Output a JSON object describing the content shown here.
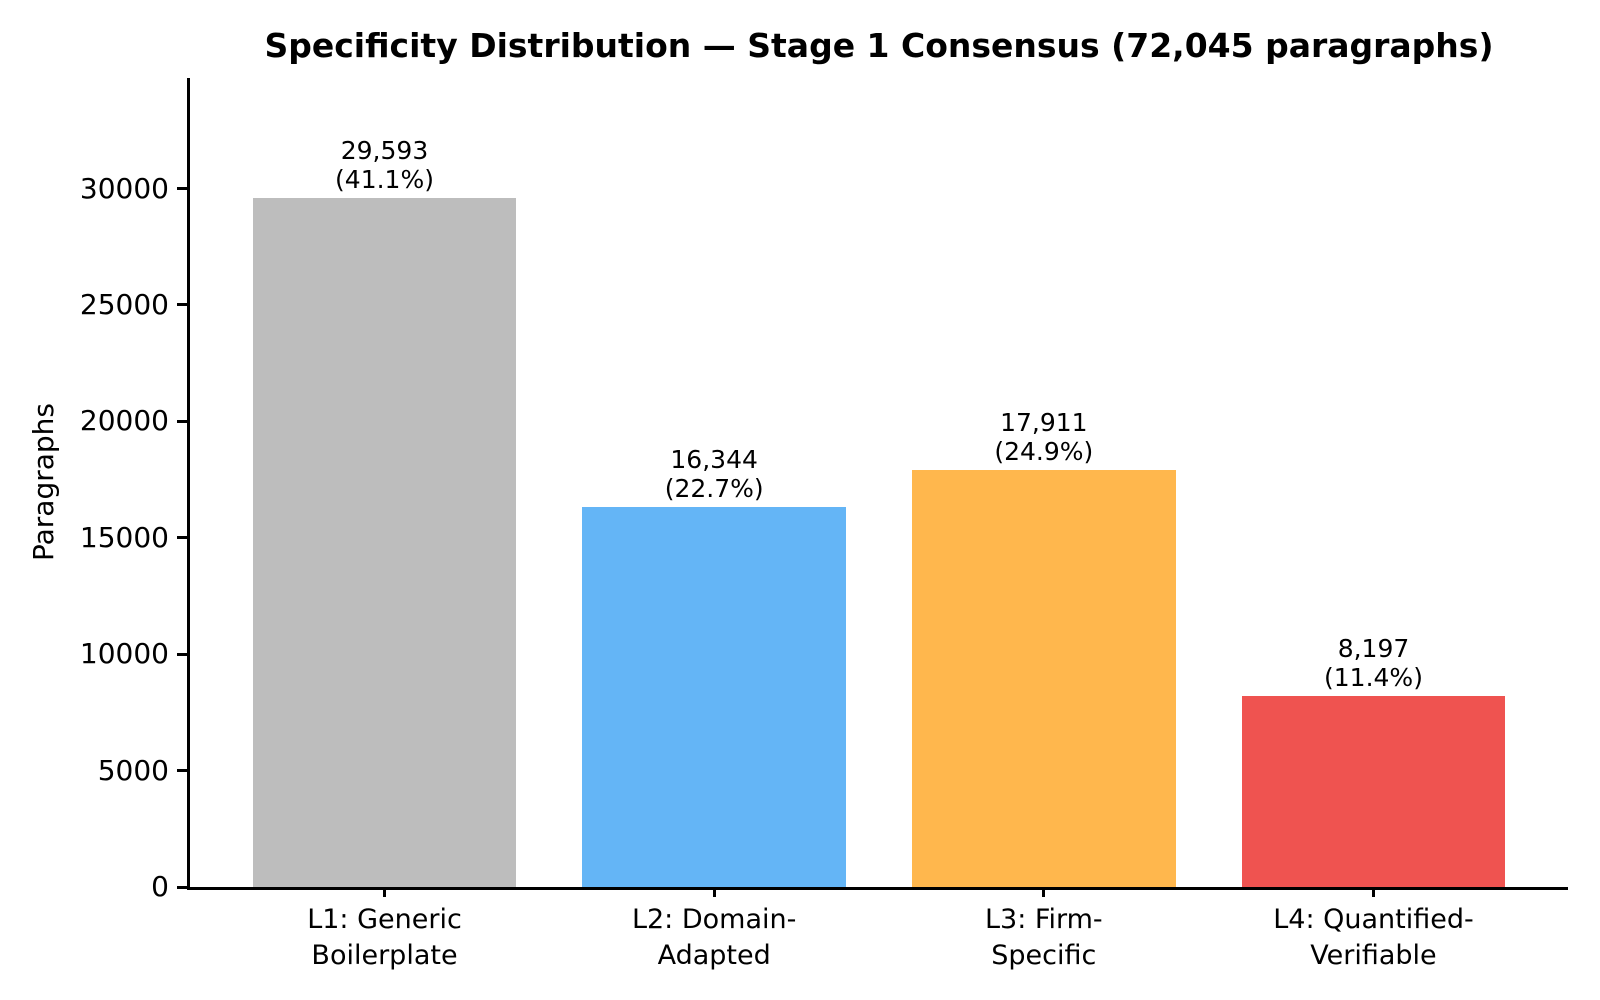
{
  "chart_data": {
    "type": "bar",
    "title": "Specificity Distribution — Stage 1 Consensus (72,045 paragraphs)",
    "xlabel": "",
    "ylabel": "Paragraphs",
    "categories": [
      [
        "L1: Generic",
        "Boilerplate"
      ],
      [
        "L2: Domain-",
        "Adapted"
      ],
      [
        "L3: Firm-",
        "Specific"
      ],
      [
        "L4: Quantified-",
        "Verifiable"
      ]
    ],
    "values": [
      29593,
      16344,
      17911,
      8197
    ],
    "percentages": [
      41.1,
      22.7,
      24.9,
      11.4
    ],
    "value_labels": [
      [
        "29,593",
        "(41.1%)"
      ],
      [
        "16,344",
        "(22.7%)"
      ],
      [
        "17,911",
        "(24.9%)"
      ],
      [
        "8,197",
        "(11.4%)"
      ]
    ],
    "bar_colors": [
      "#BDBDBD",
      "#64B5F6",
      "#FFB74D",
      "#EF5350"
    ],
    "ytick_values": [
      0,
      5000,
      10000,
      15000,
      20000,
      25000,
      30000
    ],
    "ytick_labels": [
      "0",
      "5000",
      "10000",
      "15000",
      "20000",
      "25000",
      "30000"
    ],
    "ylim": [
      0,
      34750
    ],
    "grid": false,
    "legend_position": "none",
    "axis_color": "#000000",
    "text_color": "#000000",
    "background_color": "#ffffff"
  }
}
